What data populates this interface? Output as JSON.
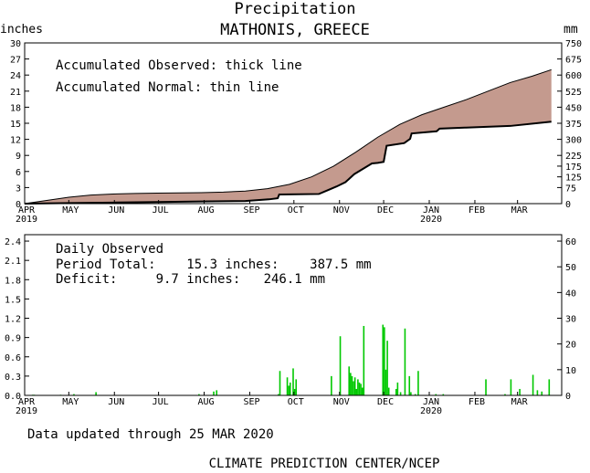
{
  "chart_data": [
    {
      "type": "area",
      "title": "Precipitation",
      "subtitle": "MATHONIS,  GREECE",
      "ylabel_left": "inches",
      "ylabel_right": "mm",
      "ylim": [
        0,
        30
      ],
      "ylim_mm": [
        0,
        750
      ],
      "y_ticks": [
        0,
        3,
        6,
        9,
        12,
        15,
        18,
        21,
        24,
        27,
        30
      ],
      "y_ticks_mm": [
        0,
        75,
        125,
        175,
        225,
        300,
        375,
        450,
        525,
        600,
        675,
        750
      ],
      "x_labels": [
        "APR",
        "MAY",
        "JUN",
        "JUL",
        "AUG",
        "SEP",
        "OCT",
        "NOV",
        "DEC",
        "JAN",
        "FEB",
        "MAR"
      ],
      "x_years": [
        {
          "month": "APR",
          "year": "2019"
        },
        {
          "month": "JAN",
          "year": "2020"
        }
      ],
      "annotations": [
        "Accumulated Observed: thick line",
        "Accumulated Normal: thin line"
      ],
      "fill_color": "#c49a8e",
      "line_color": "#000000",
      "x_unit": "days since Apr 1 2019",
      "series": [
        {
          "name": "Accumulated Observed",
          "x": [
            0,
            30,
            60,
            90,
            120,
            150,
            166,
            172,
            173,
            200,
            206,
            212,
            218,
            224,
            236,
            240,
            244,
            246,
            258,
            262,
            263,
            280,
            282,
            300,
            330,
            358
          ],
          "values": [
            0,
            0.1,
            0.2,
            0.3,
            0.4,
            0.5,
            0.8,
            1.0,
            1.7,
            1.8,
            2.5,
            3.2,
            4.0,
            5.5,
            7.5,
            7.6,
            7.8,
            10.8,
            11.3,
            12.1,
            13.1,
            13.5,
            14.0,
            14.2,
            14.5,
            15.3
          ]
        },
        {
          "name": "Accumulated Normal",
          "x": [
            0,
            15,
            30,
            45,
            60,
            75,
            90,
            105,
            120,
            135,
            150,
            165,
            180,
            195,
            210,
            225,
            240,
            255,
            270,
            285,
            300,
            315,
            330,
            345,
            358
          ],
          "values": [
            0,
            0.6,
            1.2,
            1.6,
            1.8,
            1.9,
            1.95,
            2.0,
            2.05,
            2.15,
            2.35,
            2.8,
            3.6,
            5.0,
            7.0,
            9.6,
            12.4,
            14.8,
            16.6,
            18.0,
            19.4,
            21.0,
            22.6,
            23.8,
            25.0
          ]
        }
      ]
    },
    {
      "type": "bar",
      "title": "Daily Observed",
      "annotations": [
        "Period Total:    15.3 inches:    387.5 mm",
        "Deficit:     9.7 inches:   246.1 mm"
      ],
      "ylim": [
        0,
        2.5
      ],
      "ylim_mm": [
        0,
        62.5
      ],
      "y_ticks": [
        0,
        0.3,
        0.6,
        0.9,
        1.2,
        1.5,
        1.8,
        2.1,
        2.4
      ],
      "y_ticks_mm": [
        0,
        10,
        20,
        30,
        40,
        50,
        60
      ],
      "x_labels": [
        "APR",
        "MAY",
        "JUN",
        "JUL",
        "AUG",
        "SEP",
        "OCT",
        "NOV",
        "DEC",
        "JAN",
        "FEB",
        "MAR"
      ],
      "x_years": [
        {
          "month": "APR",
          "year": "2019"
        },
        {
          "month": "JAN",
          "year": "2020"
        }
      ],
      "bar_color": "#00c800",
      "x_unit": "days since Apr 1 2019",
      "x": [
        5,
        6,
        24,
        33,
        48,
        118,
        128,
        130,
        172,
        173,
        178,
        179,
        180,
        182,
        183,
        184,
        208,
        214,
        220,
        221,
        222,
        223,
        224,
        225,
        226,
        227,
        228,
        229,
        230,
        243,
        244,
        245,
        246,
        247,
        252,
        253,
        255,
        258,
        261,
        262,
        265,
        267,
        279,
        284,
        313,
        326,
        330,
        336,
        345,
        348,
        351,
        356
      ],
      "values": [
        0.01,
        0.01,
        0.01,
        0.02,
        0.05,
        0.02,
        0.06,
        0.08,
        0.02,
        0.38,
        0.28,
        0.15,
        0.2,
        0.42,
        0.1,
        0.25,
        0.3,
        0.92,
        0.45,
        0.35,
        0.3,
        0.22,
        0.28,
        0.1,
        0.25,
        0.2,
        0.18,
        0.12,
        1.08,
        1.1,
        1.06,
        0.4,
        0.85,
        0.12,
        0.1,
        0.2,
        0.05,
        1.04,
        0.3,
        0.05,
        0.02,
        0.38,
        0.02,
        0.02,
        0.25,
        0.02,
        0.25,
        0.1,
        0.32,
        0.08,
        0.06,
        0.25
      ]
    }
  ],
  "footer": {
    "updated": "Data updated through 25 MAR 2020",
    "credit": "CLIMATE PREDICTION CENTER/NCEP"
  }
}
